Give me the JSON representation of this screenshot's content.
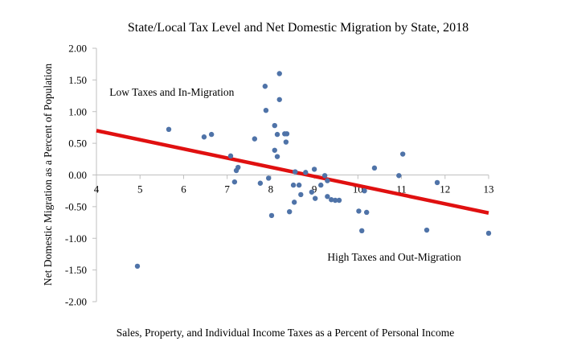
{
  "chart_data": {
    "type": "scatter",
    "title": "State/Local Tax Level and Net Domestic Migration by State, 2018",
    "xlabel": "Sales, Property, and Individual Income Taxes as a Percent of Personal Income",
    "ylabel": "Net Domestic Migration as a Percent of Population",
    "xlim": [
      4,
      13
    ],
    "ylim": [
      -2.0,
      2.0
    ],
    "x_ticks": [
      "4",
      "5",
      "6",
      "7",
      "8",
      "9",
      "10",
      "11",
      "12",
      "13"
    ],
    "y_ticks": [
      "2.00",
      "1.50",
      "1.00",
      "0.50",
      "0.00",
      "-0.50",
      "-1.00",
      "-1.50",
      "-2.00"
    ],
    "grid": false,
    "legend": "none",
    "point_color": "#4f73a8",
    "trendline_color": "#e01010",
    "annotations": [
      {
        "text": "Low Taxes and In-Migration",
        "x": 4.3,
        "y": 1.25
      },
      {
        "text": "High Taxes and Out-Migration",
        "x": 9.3,
        "y": -1.35
      }
    ],
    "trendline": {
      "x": [
        4,
        13
      ],
      "y": [
        0.7,
        -0.6
      ]
    },
    "points": [
      {
        "x": 4.94,
        "y": -1.44
      },
      {
        "x": 5.66,
        "y": 0.72
      },
      {
        "x": 6.47,
        "y": 0.6
      },
      {
        "x": 6.64,
        "y": 0.64
      },
      {
        "x": 7.08,
        "y": 0.3
      },
      {
        "x": 7.25,
        "y": 0.12
      },
      {
        "x": 7.21,
        "y": 0.07
      },
      {
        "x": 7.17,
        "y": -0.11
      },
      {
        "x": 7.63,
        "y": 0.57
      },
      {
        "x": 7.76,
        "y": -0.13
      },
      {
        "x": 7.87,
        "y": 1.4
      },
      {
        "x": 7.89,
        "y": 1.02
      },
      {
        "x": 7.95,
        "y": -0.05
      },
      {
        "x": 8.02,
        "y": -0.64
      },
      {
        "x": 8.09,
        "y": 0.78
      },
      {
        "x": 8.09,
        "y": 0.39
      },
      {
        "x": 8.15,
        "y": 0.64
      },
      {
        "x": 8.15,
        "y": 0.29
      },
      {
        "x": 8.2,
        "y": 1.6
      },
      {
        "x": 8.2,
        "y": 1.19
      },
      {
        "x": 8.32,
        "y": 0.65
      },
      {
        "x": 8.37,
        "y": 0.65
      },
      {
        "x": 8.35,
        "y": 0.52
      },
      {
        "x": 8.43,
        "y": -0.58
      },
      {
        "x": 8.52,
        "y": -0.16
      },
      {
        "x": 8.54,
        "y": -0.43
      },
      {
        "x": 8.56,
        "y": 0.05
      },
      {
        "x": 8.65,
        "y": -0.16
      },
      {
        "x": 8.69,
        "y": -0.31
      },
      {
        "x": 8.8,
        "y": 0.04
      },
      {
        "x": 8.94,
        "y": -0.27
      },
      {
        "x": 9.0,
        "y": 0.09
      },
      {
        "x": 9.02,
        "y": -0.37
      },
      {
        "x": 9.15,
        "y": -0.16
      },
      {
        "x": 9.24,
        "y": -0.01
      },
      {
        "x": 9.3,
        "y": -0.09
      },
      {
        "x": 9.3,
        "y": -0.34
      },
      {
        "x": 9.39,
        "y": -0.39
      },
      {
        "x": 9.48,
        "y": -0.4
      },
      {
        "x": 9.57,
        "y": -0.4
      },
      {
        "x": 10.02,
        "y": -0.57
      },
      {
        "x": 10.09,
        "y": -0.88
      },
      {
        "x": 10.15,
        "y": -0.25
      },
      {
        "x": 10.2,
        "y": -0.59
      },
      {
        "x": 10.38,
        "y": 0.11
      },
      {
        "x": 10.94,
        "y": -0.01
      },
      {
        "x": 11.03,
        "y": 0.33
      },
      {
        "x": 11.58,
        "y": -0.87
      },
      {
        "x": 11.82,
        "y": -0.12
      },
      {
        "x": 13.0,
        "y": -0.92
      }
    ]
  }
}
